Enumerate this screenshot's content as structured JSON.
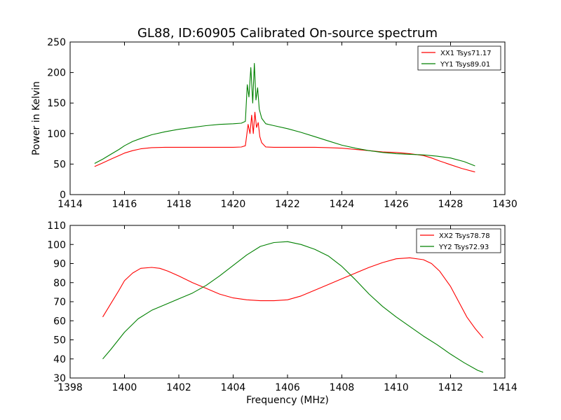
{
  "figure": {
    "title": "GL88, ID:60905 Calibrated On-source spectrum",
    "colors": {
      "xx": "#ff0000",
      "yy": "#008000"
    }
  },
  "chart_data": [
    {
      "type": "line",
      "title": "GL88, ID:60905 Calibrated On-source spectrum",
      "xlabel": "",
      "ylabel": "Power in Kelvin",
      "xlim": [
        1414,
        1430
      ],
      "ylim": [
        0,
        250
      ],
      "xticks": [
        1414,
        1416,
        1418,
        1420,
        1422,
        1424,
        1426,
        1428,
        1430
      ],
      "yticks": [
        0,
        50,
        100,
        150,
        200,
        250
      ],
      "grid": false,
      "legend": "top-right",
      "series": [
        {
          "name": "XX1 Tsys71.17",
          "color": "#ff0000",
          "x": [
            1414.9,
            1415.2,
            1415.5,
            1415.8,
            1416.0,
            1416.3,
            1416.6,
            1417.0,
            1417.5,
            1418.0,
            1418.5,
            1419.0,
            1419.5,
            1420.0,
            1420.3,
            1420.45,
            1420.55,
            1420.62,
            1420.68,
            1420.74,
            1420.8,
            1420.86,
            1420.92,
            1420.98,
            1421.05,
            1421.2,
            1421.5,
            1422.0,
            1422.5,
            1423.0,
            1423.5,
            1424.0,
            1424.5,
            1425.0,
            1425.5,
            1426.0,
            1426.5,
            1427.0,
            1427.3,
            1427.6,
            1428.0,
            1428.4,
            1428.9
          ],
          "y": [
            46,
            52,
            58,
            64,
            68,
            72,
            75,
            77,
            77.5,
            77.5,
            77.5,
            77.5,
            77.5,
            77.5,
            78,
            80,
            115,
            100,
            130,
            100,
            135,
            110,
            118,
            95,
            85,
            78,
            77.5,
            77.5,
            77.5,
            77.5,
            77,
            76,
            74,
            72,
            70,
            69,
            67,
            64,
            60,
            55,
            49,
            43,
            37
          ]
        },
        {
          "name": "YY1 Tsys89.01",
          "color": "#008000",
          "x": [
            1414.9,
            1415.2,
            1415.5,
            1415.8,
            1416.0,
            1416.3,
            1416.6,
            1417.0,
            1417.5,
            1418.0,
            1418.5,
            1419.0,
            1419.5,
            1420.0,
            1420.3,
            1420.45,
            1420.52,
            1420.58,
            1420.65,
            1420.72,
            1420.78,
            1420.84,
            1420.9,
            1420.96,
            1421.05,
            1421.2,
            1421.5,
            1422.0,
            1422.5,
            1423.0,
            1423.5,
            1424.0,
            1424.5,
            1425.0,
            1425.5,
            1426.0,
            1426.5,
            1427.0,
            1427.5,
            1428.0,
            1428.5,
            1428.9
          ],
          "y": [
            51,
            58,
            66,
            74,
            80,
            87,
            92,
            98,
            103,
            107,
            110,
            113,
            115,
            116,
            117,
            120,
            180,
            160,
            208,
            150,
            215,
            155,
            175,
            140,
            125,
            116,
            113,
            108,
            102,
            95,
            88,
            81,
            76,
            72,
            69,
            67,
            66,
            65,
            63,
            60,
            54,
            47
          ]
        }
      ]
    },
    {
      "type": "line",
      "title": "",
      "xlabel": "Frequency (MHz)",
      "ylabel": "",
      "xlim": [
        1398,
        1414
      ],
      "ylim": [
        30,
        110
      ],
      "xticks": [
        1398,
        1400,
        1402,
        1404,
        1406,
        1408,
        1410,
        1412,
        1414
      ],
      "yticks": [
        30,
        40,
        50,
        60,
        70,
        80,
        90,
        100,
        110
      ],
      "grid": false,
      "legend": "top-right",
      "series": [
        {
          "name": "XX2 Tsys78.78",
          "color": "#ff0000",
          "x": [
            1399.2,
            1399.5,
            1399.8,
            1400.0,
            1400.3,
            1400.6,
            1401.0,
            1401.3,
            1401.6,
            1402.0,
            1402.5,
            1403.0,
            1403.5,
            1404.0,
            1404.5,
            1405.0,
            1405.5,
            1406.0,
            1406.5,
            1407.0,
            1407.5,
            1408.0,
            1408.5,
            1409.0,
            1409.5,
            1410.0,
            1410.5,
            1411.0,
            1411.3,
            1411.6,
            1412.0,
            1412.3,
            1412.6,
            1412.9,
            1413.2
          ],
          "y": [
            62,
            69,
            76,
            81,
            85,
            87.5,
            88,
            87.5,
            86,
            83.5,
            80,
            77,
            74,
            72,
            71,
            70.5,
            70.5,
            71,
            73,
            76,
            79,
            82,
            85,
            88,
            90.5,
            92.5,
            93,
            92,
            90,
            86,
            78,
            70,
            62,
            56,
            51
          ]
        },
        {
          "name": "YY2 Tsys72.93",
          "color": "#008000",
          "x": [
            1399.2,
            1399.5,
            1400.0,
            1400.5,
            1401.0,
            1401.5,
            1402.0,
            1402.5,
            1403.0,
            1403.5,
            1404.0,
            1404.5,
            1405.0,
            1405.5,
            1406.0,
            1406.5,
            1407.0,
            1407.5,
            1408.0,
            1408.5,
            1409.0,
            1409.5,
            1410.0,
            1410.5,
            1411.0,
            1411.5,
            1412.0,
            1412.5,
            1413.0,
            1413.2
          ],
          "y": [
            40,
            45,
            54,
            61,
            65.5,
            68.5,
            71.5,
            74.5,
            78.5,
            83.5,
            89,
            94.5,
            99,
            101,
            101.5,
            100,
            97.5,
            94,
            88.5,
            81.5,
            74,
            67.5,
            62,
            57,
            52,
            47.5,
            42.5,
            38,
            34,
            33
          ]
        }
      ]
    }
  ]
}
